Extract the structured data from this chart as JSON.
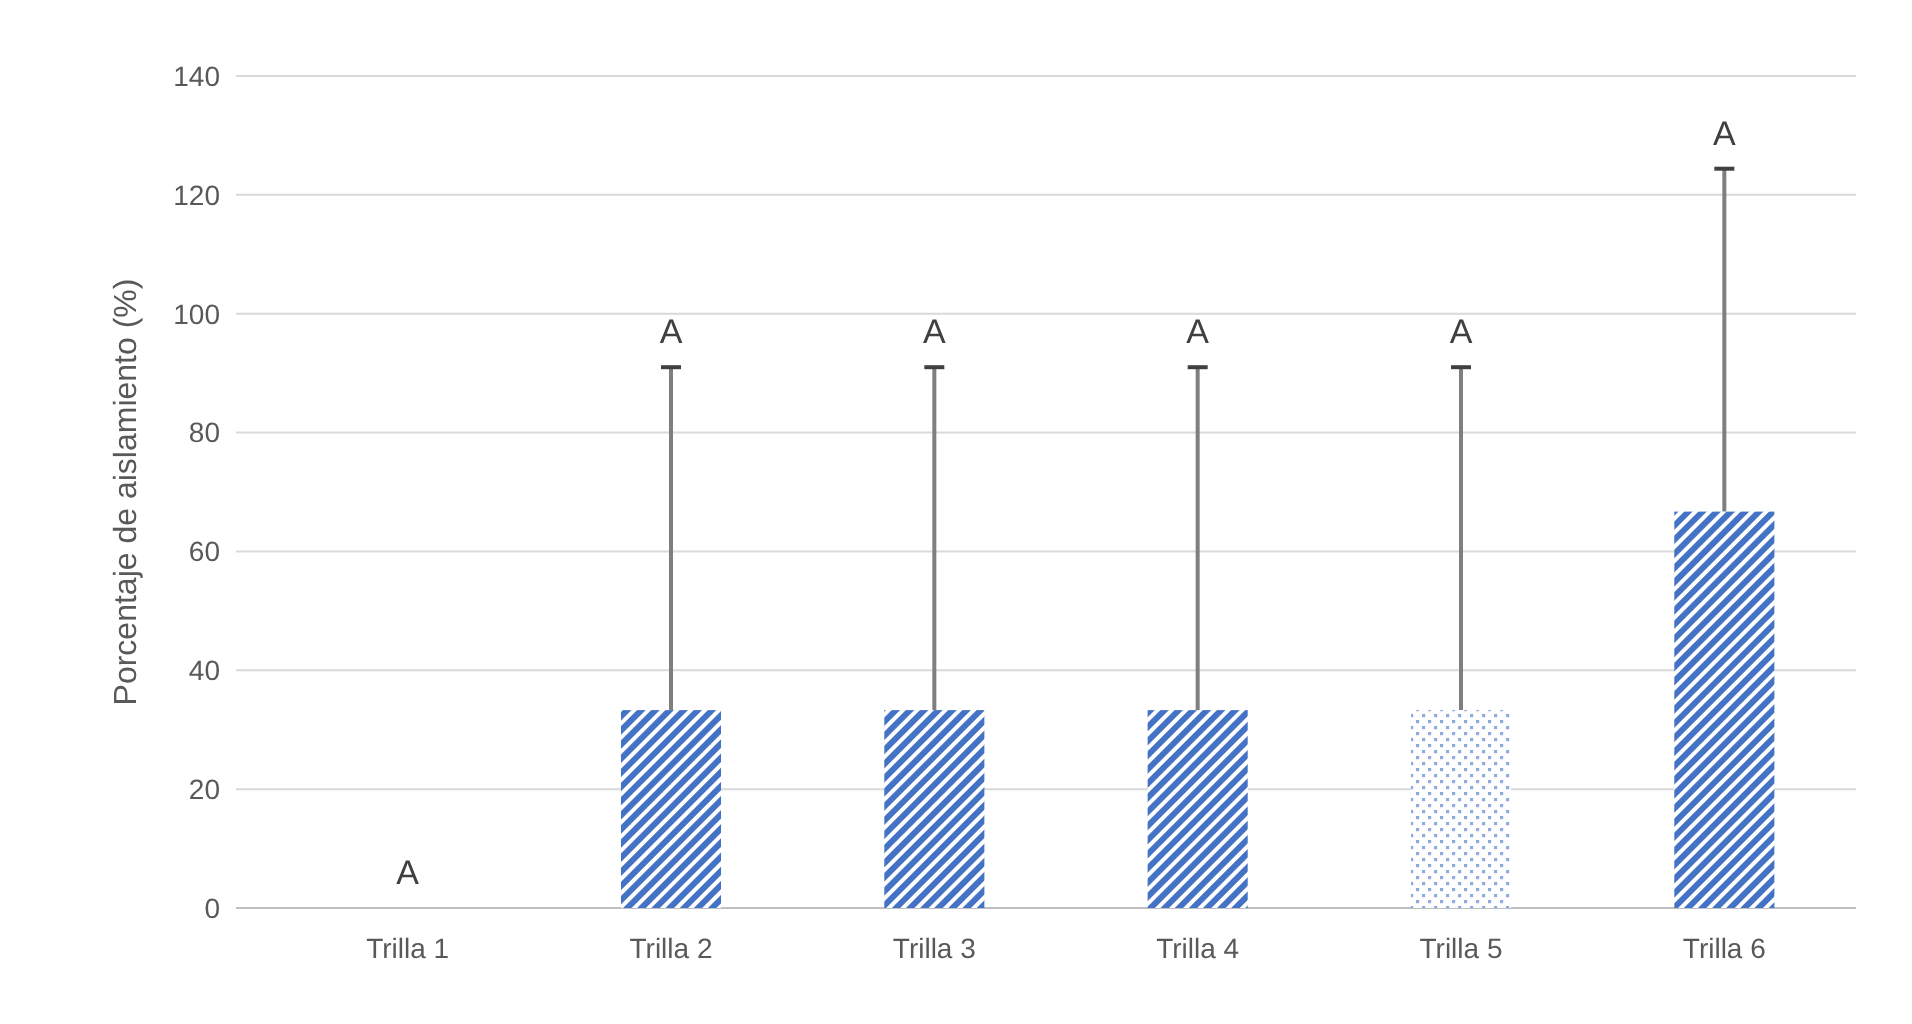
{
  "chart_data": {
    "type": "bar",
    "ylabel": "Porcentaje de aislamiento (%)",
    "categories": [
      "Trilla 1",
      "Trilla 2",
      "Trilla 3",
      "Trilla 4",
      "Trilla 5",
      "Trilla 6"
    ],
    "values": [
      0,
      33.3,
      33.3,
      33.3,
      33.3,
      66.7
    ],
    "colors": [
      "#4472c4",
      "#4472c4",
      "#4472c4",
      "#4472c4",
      "#8faadc",
      "#4472c4"
    ],
    "errors": [
      null,
      [
        33.3,
        91
      ],
      [
        33.3,
        91
      ],
      [
        33.3,
        91
      ],
      [
        33.3,
        91
      ],
      [
        66.7,
        124.4
      ]
    ],
    "ylim": [
      0,
      140
    ],
    "yticks": [
      0,
      20,
      40,
      60,
      80,
      100,
      120,
      140
    ],
    "grid": "y",
    "annotations": [
      {
        "text": "A",
        "x": "Trilla 1",
        "y": 0
      },
      {
        "text": "A",
        "x": "Trilla 2",
        "y": 91
      },
      {
        "text": "A",
        "x": "Trilla 3",
        "y": 91
      },
      {
        "text": "A",
        "x": "Trilla 4",
        "y": 91
      },
      {
        "text": "A",
        "x": "Trilla 5",
        "y": 91
      },
      {
        "text": "A",
        "x": "Trilla 6",
        "y": 124.4
      }
    ]
  }
}
